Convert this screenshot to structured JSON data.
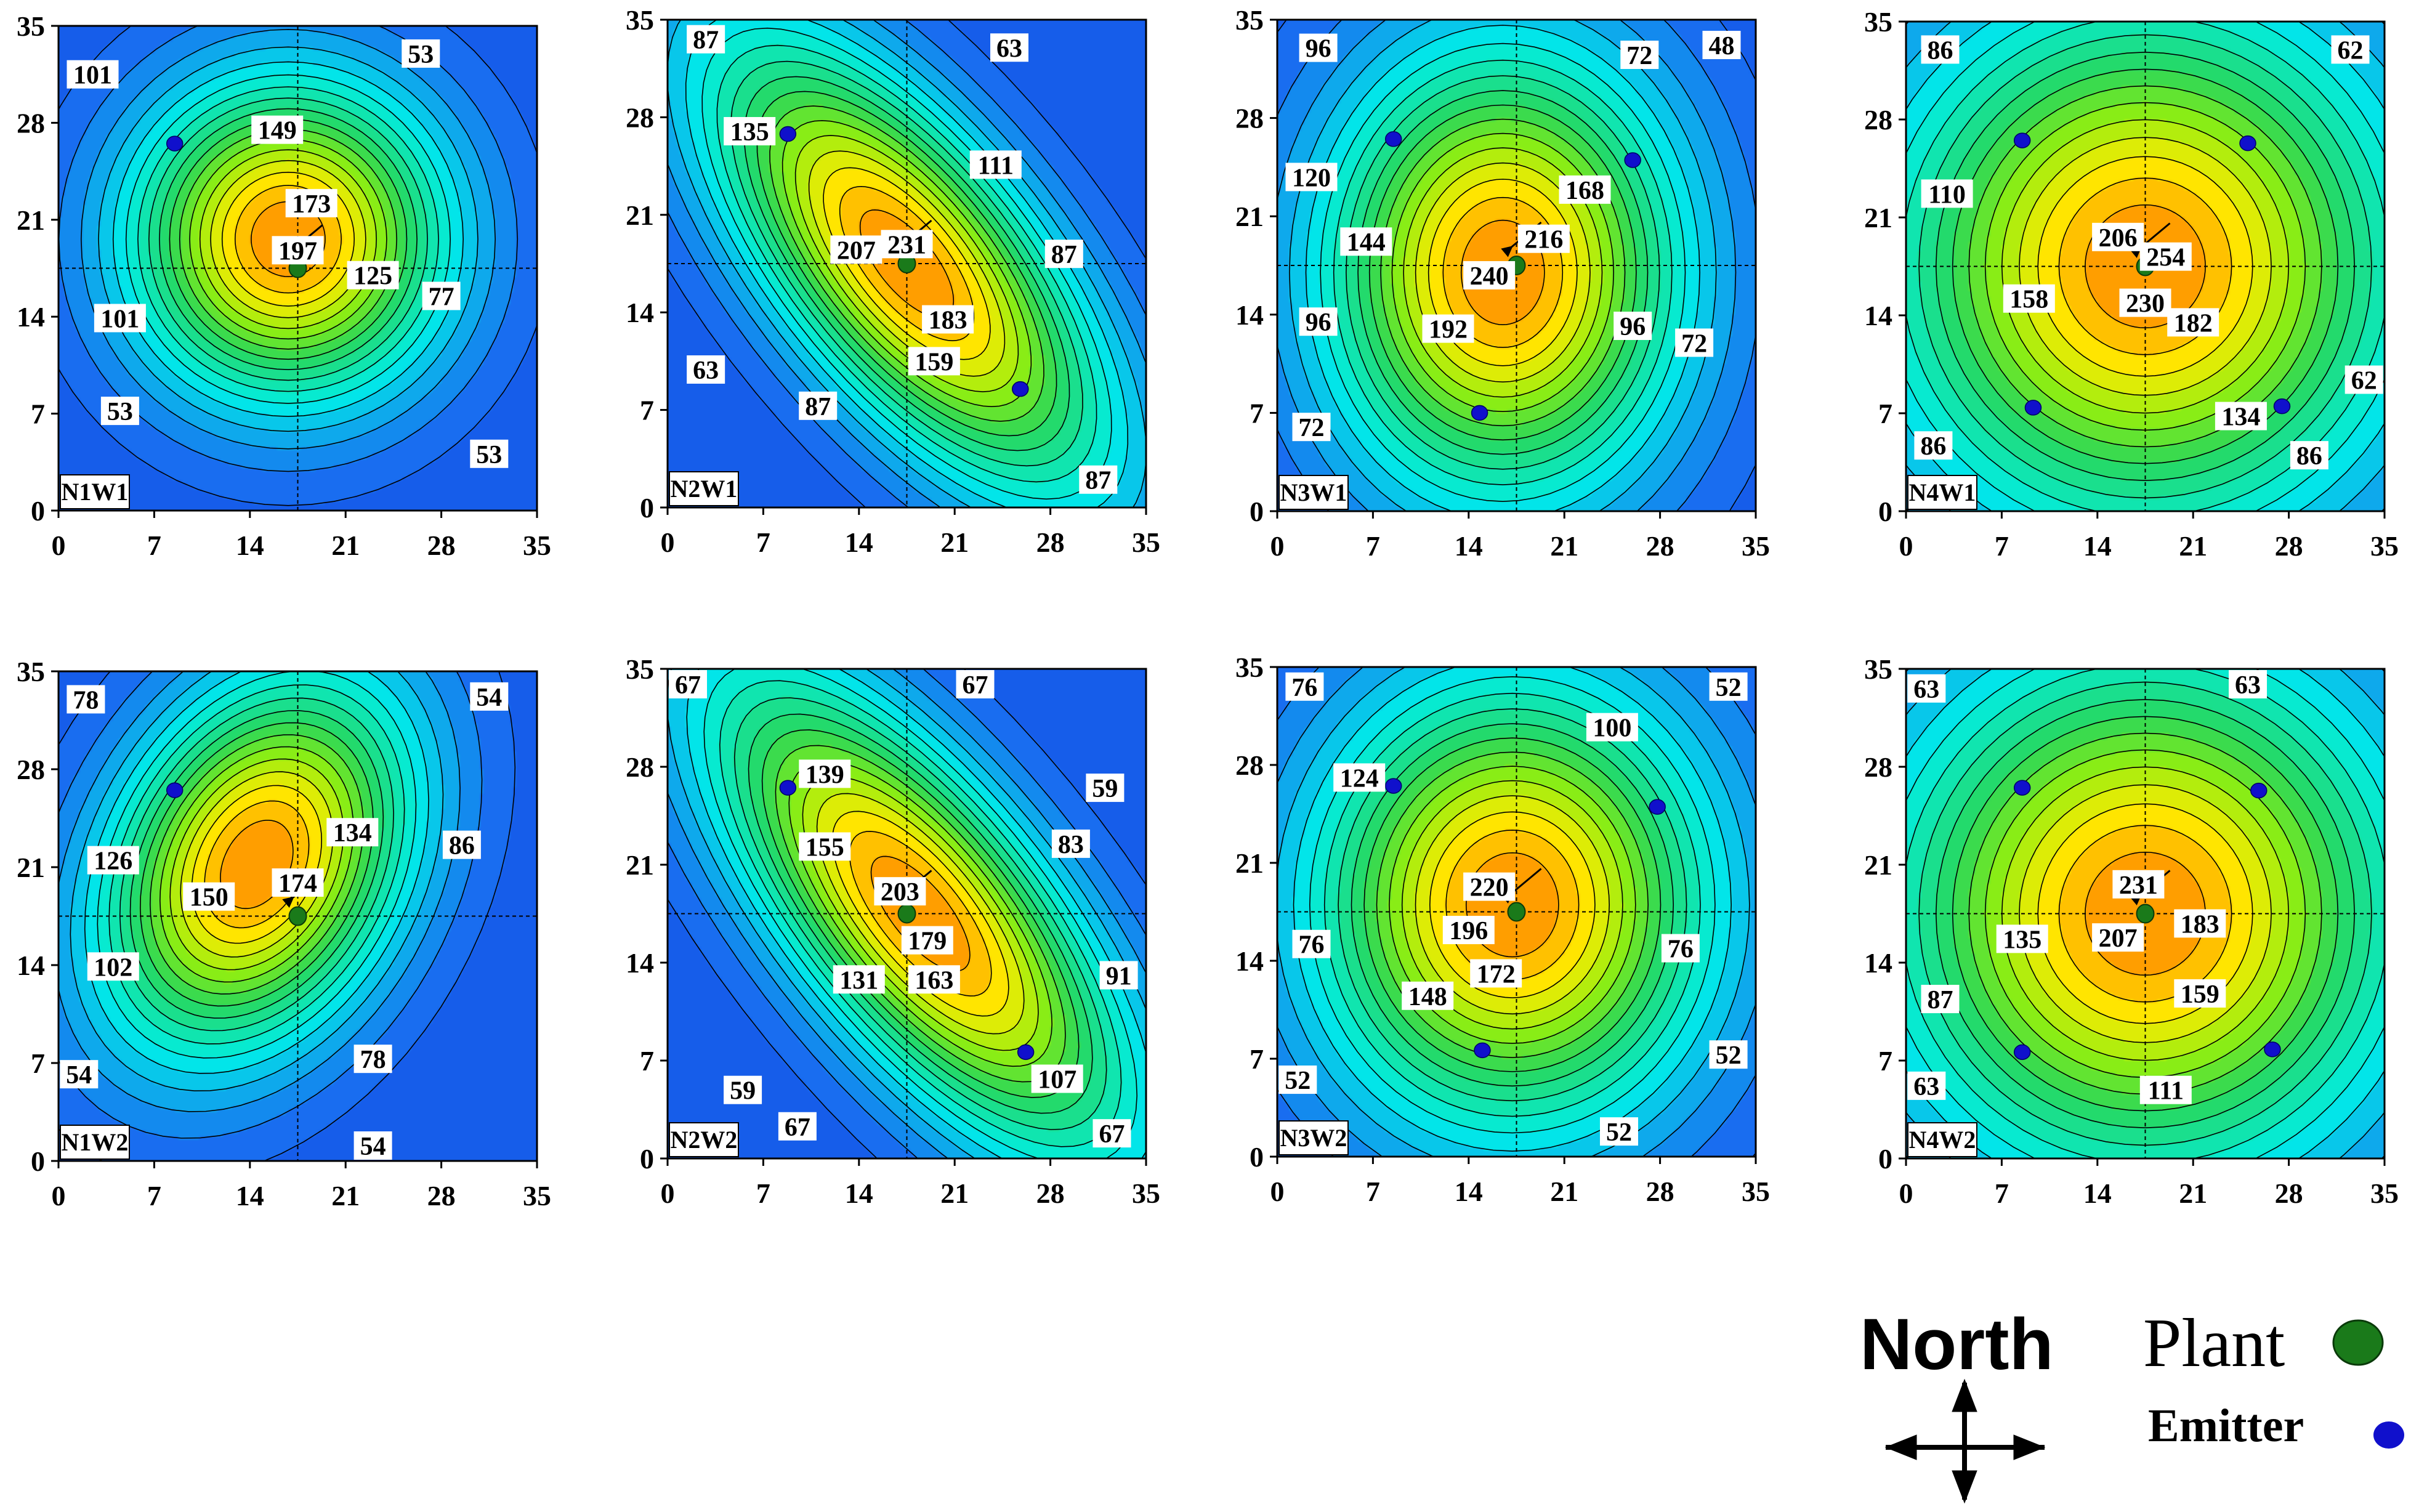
{
  "chart_data": [
    {
      "type": "contour",
      "title": "N1W1",
      "xlim": [
        0,
        35
      ],
      "ylim": [
        0,
        35
      ],
      "xticks": [
        "0",
        "7",
        "14",
        "21",
        "28",
        "35"
      ],
      "yticks": [
        "0",
        "7",
        "14",
        "21",
        "28",
        "35"
      ],
      "peak": {
        "x": 16.8,
        "y": 19.6,
        "value": 205
      },
      "base_value": 40,
      "spread": [
        8,
        8
      ],
      "rotation_deg": 40,
      "plant": {
        "x": 17.5,
        "y": 17.5
      },
      "emitters": [
        {
          "x": 8.5,
          "y": 26.5
        }
      ],
      "contour_labels": [
        {
          "x": 2.5,
          "y": 31.5,
          "value": 101
        },
        {
          "x": 26.5,
          "y": 33.0,
          "value": 53
        },
        {
          "x": 16.0,
          "y": 27.5,
          "value": 149
        },
        {
          "x": 18.5,
          "y": 22.2,
          "value": 173
        },
        {
          "x": 17.5,
          "y": 18.8,
          "value": 197
        },
        {
          "x": 23.0,
          "y": 17.0,
          "value": 125
        },
        {
          "x": 28.0,
          "y": 15.5,
          "value": 77
        },
        {
          "x": 4.5,
          "y": 13.9,
          "value": 101
        },
        {
          "x": 4.5,
          "y": 7.2,
          "value": 53
        },
        {
          "x": 31.5,
          "y": 4.1,
          "value": 53
        }
      ]
    },
    {
      "type": "contour",
      "title": "N2W1",
      "xlim": [
        0,
        35
      ],
      "ylim": [
        0,
        35
      ],
      "xticks": [
        "0",
        "7",
        "14",
        "21",
        "28",
        "35"
      ],
      "yticks": [
        "0",
        "7",
        "14",
        "21",
        "28",
        "35"
      ],
      "peak": {
        "x": 17.5,
        "y": 17.5,
        "value": 240
      },
      "base_value": 55,
      "spread": [
        6,
        14
      ],
      "rotation_deg": 40,
      "plant": {
        "x": 17.5,
        "y": 17.5
      },
      "emitters": [
        {
          "x": 8.8,
          "y": 26.8
        },
        {
          "x": 25.8,
          "y": 8.5
        }
      ],
      "contour_labels": [
        {
          "x": 2.8,
          "y": 33.6,
          "value": 87
        },
        {
          "x": 25.0,
          "y": 33.0,
          "value": 63
        },
        {
          "x": 6.0,
          "y": 27.0,
          "value": 135
        },
        {
          "x": 24.0,
          "y": 24.6,
          "value": 111
        },
        {
          "x": 13.8,
          "y": 18.5,
          "value": 207
        },
        {
          "x": 17.5,
          "y": 18.9,
          "value": 231
        },
        {
          "x": 29.0,
          "y": 18.2,
          "value": 87
        },
        {
          "x": 20.5,
          "y": 13.5,
          "value": 183
        },
        {
          "x": 19.5,
          "y": 10.5,
          "value": 159
        },
        {
          "x": 2.8,
          "y": 9.9,
          "value": 63
        },
        {
          "x": 11.0,
          "y": 7.3,
          "value": 87
        },
        {
          "x": 31.5,
          "y": 2.0,
          "value": 87
        }
      ]
    },
    {
      "type": "contour",
      "title": "N3W1",
      "xlim": [
        0,
        35
      ],
      "ylim": [
        0,
        35
      ],
      "xticks": [
        "0",
        "7",
        "14",
        "21",
        "28",
        "35"
      ],
      "yticks": [
        "0",
        "7",
        "14",
        "21",
        "28",
        "35"
      ],
      "peak": {
        "x": 16.5,
        "y": 17.0,
        "value": 250
      },
      "base_value": 60,
      "spread": [
        9,
        11
      ],
      "rotation_deg": 0,
      "plant": {
        "x": 17.5,
        "y": 17.5
      },
      "emitters": [
        {
          "x": 8.5,
          "y": 26.5
        },
        {
          "x": 26.0,
          "y": 25.0
        },
        {
          "x": 14.8,
          "y": 7.0
        }
      ],
      "contour_labels": [
        {
          "x": 3.0,
          "y": 33.0,
          "value": 96
        },
        {
          "x": 26.5,
          "y": 32.5,
          "value": 72
        },
        {
          "x": 32.5,
          "y": 33.2,
          "value": 48
        },
        {
          "x": 2.5,
          "y": 23.8,
          "value": 120
        },
        {
          "x": 22.5,
          "y": 22.9,
          "value": 168
        },
        {
          "x": 6.5,
          "y": 19.2,
          "value": 144
        },
        {
          "x": 19.5,
          "y": 19.4,
          "value": 216
        },
        {
          "x": 15.5,
          "y": 16.8,
          "value": 240
        },
        {
          "x": 3.0,
          "y": 13.5,
          "value": 96
        },
        {
          "x": 12.5,
          "y": 13.0,
          "value": 192
        },
        {
          "x": 26.0,
          "y": 13.2,
          "value": 96
        },
        {
          "x": 30.5,
          "y": 12.0,
          "value": 72
        },
        {
          "x": 2.5,
          "y": 6.0,
          "value": 72
        }
      ]
    },
    {
      "type": "contour",
      "title": "N4W1",
      "xlim": [
        0,
        35
      ],
      "ylim": [
        0,
        35
      ],
      "xticks": [
        "0",
        "7",
        "14",
        "21",
        "28",
        "35"
      ],
      "yticks": [
        "0",
        "7",
        "14",
        "21",
        "28",
        "35"
      ],
      "peak": {
        "x": 17.5,
        "y": 17.5,
        "value": 265
      },
      "base_value": 60,
      "spread": [
        13,
        13
      ],
      "rotation_deg": 0,
      "plant": {
        "x": 17.5,
        "y": 17.5
      },
      "emitters": [
        {
          "x": 8.5,
          "y": 26.5
        },
        {
          "x": 25.0,
          "y": 26.3
        },
        {
          "x": 9.3,
          "y": 7.4
        },
        {
          "x": 27.5,
          "y": 7.5
        }
      ],
      "contour_labels": [
        {
          "x": 2.5,
          "y": 33.0,
          "value": 86
        },
        {
          "x": 32.5,
          "y": 33.0,
          "value": 62
        },
        {
          "x": 3.0,
          "y": 22.7,
          "value": 110
        },
        {
          "x": 15.5,
          "y": 19.6,
          "value": 206
        },
        {
          "x": 19.0,
          "y": 18.2,
          "value": 254
        },
        {
          "x": 9.0,
          "y": 15.2,
          "value": 158
        },
        {
          "x": 17.5,
          "y": 14.9,
          "value": 230
        },
        {
          "x": 21.0,
          "y": 13.5,
          "value": 182
        },
        {
          "x": 33.5,
          "y": 9.4,
          "value": 62
        },
        {
          "x": 24.5,
          "y": 6.8,
          "value": 134
        },
        {
          "x": 2.0,
          "y": 4.7,
          "value": 86
        },
        {
          "x": 29.5,
          "y": 4.0,
          "value": 86
        }
      ]
    },
    {
      "type": "contour",
      "title": "N1W2",
      "xlim": [
        0,
        35
      ],
      "ylim": [
        0,
        35
      ],
      "xticks": [
        "0",
        "7",
        "14",
        "21",
        "28",
        "35"
      ],
      "yticks": [
        "0",
        "7",
        "14",
        "21",
        "28",
        "35"
      ],
      "peak": {
        "x": 14.5,
        "y": 21.2,
        "value": 182
      },
      "base_value": 42,
      "spread": [
        7,
        10
      ],
      "rotation_deg": -30,
      "plant": {
        "x": 17.5,
        "y": 17.5
      },
      "emitters": [
        {
          "x": 8.5,
          "y": 26.5
        }
      ],
      "contour_labels": [
        {
          "x": 2.0,
          "y": 33.0,
          "value": 78
        },
        {
          "x": 31.5,
          "y": 33.2,
          "value": 54
        },
        {
          "x": 21.5,
          "y": 23.5,
          "value": 134
        },
        {
          "x": 29.5,
          "y": 22.6,
          "value": 86
        },
        {
          "x": 4.0,
          "y": 21.5,
          "value": 126
        },
        {
          "x": 17.5,
          "y": 19.9,
          "value": 174
        },
        {
          "x": 11.0,
          "y": 18.9,
          "value": 150
        },
        {
          "x": 4.0,
          "y": 13.9,
          "value": 102
        },
        {
          "x": 23.0,
          "y": 7.3,
          "value": 78
        },
        {
          "x": 1.5,
          "y": 6.2,
          "value": 54
        },
        {
          "x": 23.0,
          "y": 1.0,
          "value": 54
        }
      ]
    },
    {
      "type": "contour",
      "title": "N2W2",
      "xlim": [
        0,
        35
      ],
      "ylim": [
        0,
        35
      ],
      "xticks": [
        "0",
        "7",
        "14",
        "21",
        "28",
        "35"
      ],
      "yticks": [
        "0",
        "7",
        "14",
        "21",
        "28",
        "35"
      ],
      "peak": {
        "x": 18.5,
        "y": 17.5,
        "value": 212
      },
      "base_value": 50,
      "spread": [
        6,
        15
      ],
      "rotation_deg": 40,
      "plant": {
        "x": 17.5,
        "y": 17.5
      },
      "emitters": [
        {
          "x": 8.8,
          "y": 26.5
        },
        {
          "x": 26.2,
          "y": 7.6
        }
      ],
      "contour_labels": [
        {
          "x": 1.0,
          "y": 33.9,
          "value": 67
        },
        {
          "x": 22.5,
          "y": 34.2,
          "value": 67
        },
        {
          "x": 11.5,
          "y": 27.5,
          "value": 139
        },
        {
          "x": 32.0,
          "y": 26.5,
          "value": 59
        },
        {
          "x": 11.5,
          "y": 22.3,
          "value": 155
        },
        {
          "x": 29.5,
          "y": 22.5,
          "value": 83
        },
        {
          "x": 17.0,
          "y": 19.1,
          "value": 203
        },
        {
          "x": 19.0,
          "y": 15.6,
          "value": 179
        },
        {
          "x": 14.0,
          "y": 12.8,
          "value": 131
        },
        {
          "x": 19.5,
          "y": 12.8,
          "value": 163
        },
        {
          "x": 33.0,
          "y": 13.1,
          "value": 91
        },
        {
          "x": 28.5,
          "y": 5.7,
          "value": 107
        },
        {
          "x": 5.5,
          "y": 4.9,
          "value": 59
        },
        {
          "x": 9.5,
          "y": 2.3,
          "value": 67
        },
        {
          "x": 32.5,
          "y": 1.8,
          "value": 67
        }
      ]
    },
    {
      "type": "contour",
      "title": "N3W2",
      "xlim": [
        0,
        35
      ],
      "ylim": [
        0,
        35
      ],
      "xticks": [
        "0",
        "7",
        "14",
        "21",
        "28",
        "35"
      ],
      "yticks": [
        "0",
        "7",
        "14",
        "21",
        "28",
        "35"
      ],
      "peak": {
        "x": 17.2,
        "y": 18.0,
        "value": 228
      },
      "base_value": 45,
      "spread": [
        10,
        11
      ],
      "rotation_deg": 0,
      "plant": {
        "x": 17.5,
        "y": 17.5
      },
      "emitters": [
        {
          "x": 8.5,
          "y": 26.5
        },
        {
          "x": 27.8,
          "y": 25.0
        },
        {
          "x": 15.0,
          "y": 7.6
        }
      ],
      "contour_labels": [
        {
          "x": 2.0,
          "y": 33.6,
          "value": 76
        },
        {
          "x": 33.0,
          "y": 33.6,
          "value": 52
        },
        {
          "x": 24.5,
          "y": 30.7,
          "value": 100
        },
        {
          "x": 6.0,
          "y": 27.1,
          "value": 124
        },
        {
          "x": 15.5,
          "y": 19.3,
          "value": 220
        },
        {
          "x": 14.0,
          "y": 16.2,
          "value": 196
        },
        {
          "x": 2.5,
          "y": 15.2,
          "value": 76
        },
        {
          "x": 29.5,
          "y": 14.9,
          "value": 76
        },
        {
          "x": 16.0,
          "y": 13.1,
          "value": 172
        },
        {
          "x": 11.0,
          "y": 11.5,
          "value": 148
        },
        {
          "x": 33.0,
          "y": 7.3,
          "value": 52
        },
        {
          "x": 1.5,
          "y": 5.5,
          "value": 52
        },
        {
          "x": 25.0,
          "y": 1.8,
          "value": 52
        }
      ]
    },
    {
      "type": "contour",
      "title": "N4W2",
      "xlim": [
        0,
        35
      ],
      "ylim": [
        0,
        35
      ],
      "xticks": [
        "0",
        "7",
        "14",
        "21",
        "28",
        "35"
      ],
      "yticks": [
        "0",
        "7",
        "14",
        "21",
        "28",
        "35"
      ],
      "peak": {
        "x": 17.5,
        "y": 17.5,
        "value": 245
      },
      "base_value": 50,
      "spread": [
        13,
        13
      ],
      "rotation_deg": 0,
      "plant": {
        "x": 17.5,
        "y": 17.5
      },
      "emitters": [
        {
          "x": 8.5,
          "y": 26.5
        },
        {
          "x": 25.8,
          "y": 26.3
        },
        {
          "x": 8.5,
          "y": 7.6
        },
        {
          "x": 26.8,
          "y": 7.8
        }
      ],
      "contour_labels": [
        {
          "x": 1.5,
          "y": 33.6,
          "value": 63
        },
        {
          "x": 25.0,
          "y": 34.0,
          "value": 63
        },
        {
          "x": 17.0,
          "y": 19.6,
          "value": 231
        },
        {
          "x": 8.5,
          "y": 15.7,
          "value": 135
        },
        {
          "x": 15.5,
          "y": 15.8,
          "value": 207
        },
        {
          "x": 21.5,
          "y": 16.8,
          "value": 183
        },
        {
          "x": 21.5,
          "y": 11.8,
          "value": 159
        },
        {
          "x": 2.5,
          "y": 11.4,
          "value": 87
        },
        {
          "x": 19.0,
          "y": 4.9,
          "value": 111
        },
        {
          "x": 1.5,
          "y": 5.2,
          "value": 63
        }
      ]
    }
  ],
  "legend": {
    "north_label": "North",
    "plant_label": "Plant",
    "emitter_label": "Emitter",
    "plant_color": "#1a7a1a",
    "emitter_color": "#1010cc"
  },
  "colors": {
    "scale_low": "#0a2ad6",
    "scale_mid": "#00f0e8",
    "scale_high": "#ff9a00",
    "contour_line": "#000000"
  }
}
